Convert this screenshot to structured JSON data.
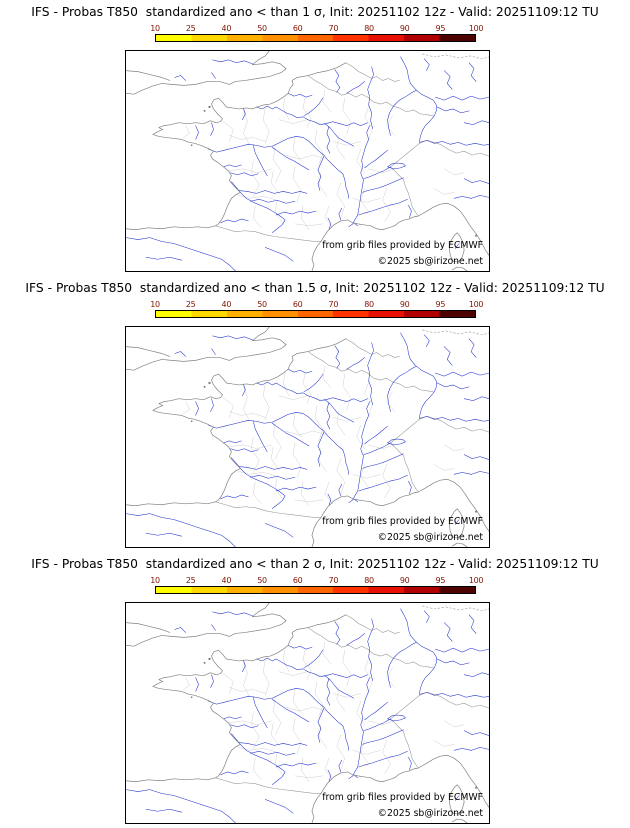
{
  "panels": [
    {
      "title": "IFS - Probas T850  standardized ano < than 1 σ, Init: 20251102 12z - Valid: 20251109:12 TU",
      "credit": "from grib files provided by ECMWF",
      "copyright": "©2025 sb@irizone.net"
    },
    {
      "title": "IFS - Probas T850  standardized ano < than 1.5 σ, Init: 20251102 12z - Valid: 20251109:12 TU",
      "credit": "from grib files provided by ECMWF",
      "copyright": "©2025 sb@irizone.net"
    },
    {
      "title": "IFS - Probas T850  standardized ano < than 2 σ, Init: 20251102 12z - Valid: 20251109:12 TU",
      "credit": "from grib files provided by ECMWF",
      "copyright": "©2025 sb@irizone.net"
    }
  ],
  "colorbar": {
    "ticks": [
      "10",
      "25",
      "40",
      "50",
      "60",
      "70",
      "80",
      "90",
      "95",
      "100"
    ],
    "tick_color": "#801400",
    "segment_colors": [
      "#ffff00",
      "#ffd800",
      "#ffb000",
      "#ff9000",
      "#ff6600",
      "#ff3300",
      "#e81000",
      "#b00000",
      "#4d0000"
    ],
    "border_color": "#000000"
  },
  "map": {
    "river_color": "#2233cc",
    "coast_color": "#808080",
    "border_color": "#999999",
    "department_color": "#c8c8c8"
  }
}
